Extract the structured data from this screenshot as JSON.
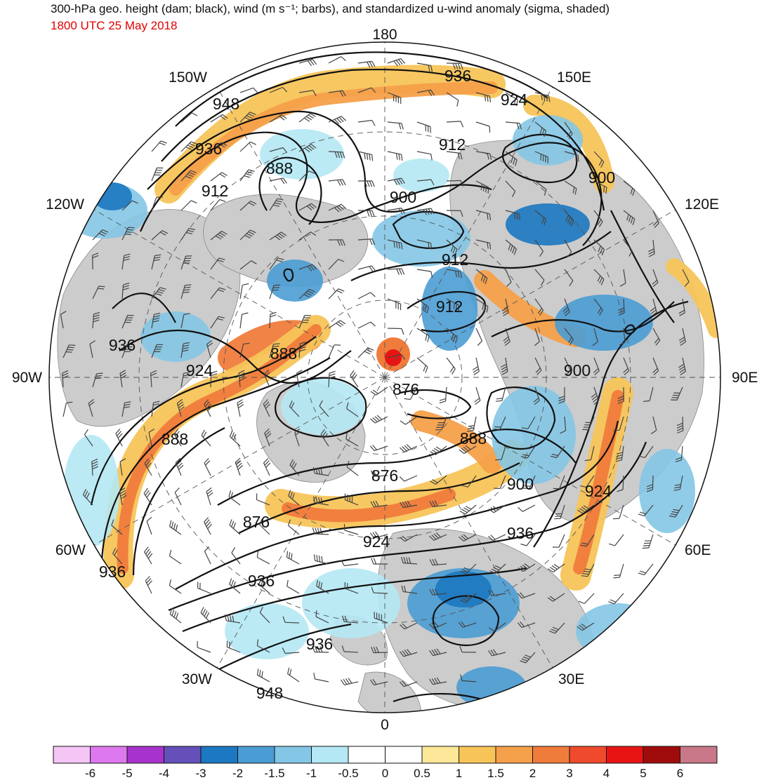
{
  "title": "300-hPa geo. height (dam; black), wind (m s⁻¹; barbs), and standardized u-wind anomaly (sigma, shaded)",
  "valid_time": "1800 UTC 25 May 2018",
  "longitude_labels": [
    {
      "text": "180",
      "lon": 180
    },
    {
      "text": "150E",
      "lon": 150
    },
    {
      "text": "120E",
      "lon": 120
    },
    {
      "text": "90E",
      "lon": 90
    },
    {
      "text": "60E",
      "lon": 60
    },
    {
      "text": "30E",
      "lon": 30
    },
    {
      "text": "0",
      "lon": 0
    },
    {
      "text": "30W",
      "lon": -30
    },
    {
      "text": "60W",
      "lon": -60
    },
    {
      "text": "90W",
      "lon": -90
    },
    {
      "text": "120W",
      "lon": -120
    },
    {
      "text": "150W",
      "lon": -150
    }
  ],
  "height_contour_labels": [
    "936",
    "924",
    "948",
    "936",
    "912",
    "888",
    "912",
    "900",
    "900",
    "912",
    "912",
    "900",
    "936",
    "924",
    "888",
    "876",
    "888",
    "888",
    "876",
    "900",
    "924",
    "876",
    "924",
    "936",
    "936",
    "936",
    "936",
    "948"
  ],
  "colorbar": {
    "ticks": [
      "-6",
      "-5",
      "-4",
      "-3",
      "-2",
      "-1.5",
      "-1",
      "-0.5",
      "0",
      "0.5",
      "1",
      "1.5",
      "2",
      "3",
      "4",
      "5",
      "6"
    ],
    "colors": [
      "#f5c5f5",
      "#de78ee",
      "#a833cc",
      "#6450b8",
      "#1c78c0",
      "#4a9cd4",
      "#84c6e6",
      "#b4e8f4",
      "#ffffff",
      "#ffffff",
      "#fde89a",
      "#f7c458",
      "#f5a04a",
      "#f07c3c",
      "#f04a2c",
      "#e81414",
      "#a00c0c",
      "#c87888"
    ]
  },
  "chart_data": {
    "type": "map",
    "projection": "north polar stereographic",
    "fields": [
      "300-hPa geopotential height (dam)",
      "wind barbs (m s-1)",
      "standardized u-wind anomaly (sigma)"
    ],
    "contour_interval_dam": 12,
    "height_contour_values_shown": [
      876,
      888,
      900,
      912,
      924,
      936,
      948
    ],
    "shading_levels_sigma": [
      -6,
      -5,
      -4,
      -3,
      -2,
      -1.5,
      -1,
      -0.5,
      0,
      0.5,
      1,
      1.5,
      2,
      3,
      4,
      5,
      6
    ]
  }
}
